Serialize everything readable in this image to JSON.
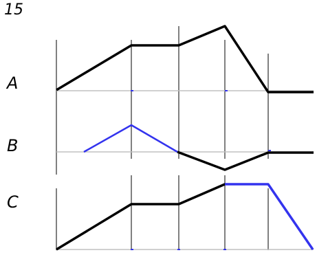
{
  "figure_number": "15",
  "rows": [
    {
      "label": "A"
    },
    {
      "label": "B"
    },
    {
      "label": "C"
    }
  ],
  "colors": {
    "black_line": "#000000",
    "blue_line": "#3333ee",
    "baseline_gray": "#c0c0c0",
    "guide_black": "#000000"
  }
}
